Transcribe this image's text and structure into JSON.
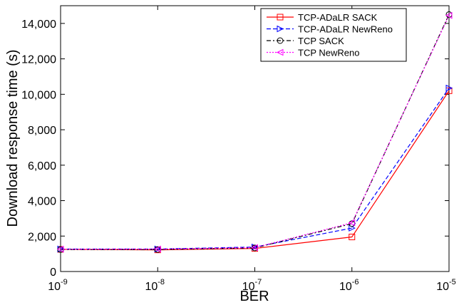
{
  "chart_data": {
    "type": "line",
    "xlabel": "BER",
    "ylabel": "Download response time (s)",
    "x_scale": "log",
    "x": [
      "1e-9",
      "1e-8",
      "1e-7",
      "1e-6",
      "1e-5"
    ],
    "x_tick_labels": [
      {
        "base": "10",
        "exp": "-9"
      },
      {
        "base": "10",
        "exp": "-8"
      },
      {
        "base": "10",
        "exp": "-7"
      },
      {
        "base": "10",
        "exp": "-6"
      },
      {
        "base": "10",
        "exp": "-5"
      }
    ],
    "ylim": [
      0,
      15000
    ],
    "y_ticks": [
      0,
      2000,
      4000,
      6000,
      8000,
      10000,
      12000,
      14000
    ],
    "y_tick_labels": [
      "0",
      "2,000",
      "4,000",
      "6,000",
      "8,000",
      "10,000",
      "12,000",
      "14,000"
    ],
    "grid": false,
    "legend_position": "top-right",
    "series": [
      {
        "name": "TCP-ADaLR SACK",
        "color": "#ff0000",
        "line": "solid",
        "marker": "square",
        "values": [
          1250,
          1220,
          1300,
          1950,
          10200
        ]
      },
      {
        "name": "TCP-ADaLR NewReno",
        "color": "#0000ff",
        "line": "dashed",
        "marker": "triangle-right",
        "values": [
          1270,
          1270,
          1380,
          2450,
          10350
        ]
      },
      {
        "name": "TCP SACK",
        "color": "#000000",
        "line": "dashdot",
        "marker": "circle",
        "values": [
          1240,
          1240,
          1330,
          2700,
          14500
        ]
      },
      {
        "name": "TCP NewReno",
        "color": "#ff00ff",
        "line": "dotted",
        "marker": "triangle-left",
        "values": [
          1260,
          1270,
          1350,
          2750,
          14450
        ]
      }
    ]
  }
}
